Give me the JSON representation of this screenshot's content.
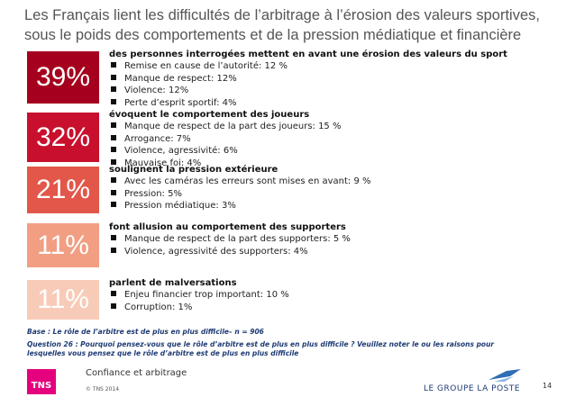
{
  "header": {
    "title_lines": [
      "Les Français lient les difficultés de l’arbitrage à l’érosion des valeurs sportives,",
      "sous le poids des comportements et de la pression médiatique et financière"
    ]
  },
  "blocks": [
    {
      "percent": "39%",
      "color": "#a5001e",
      "heading": "des personnes interrogées mettent en avant une érosion des valeurs du sport",
      "bullets": [
        "Remise en cause de l’autorité: 12 %",
        "Manque de respect: 12%",
        "Violence: 12%",
        "Perte d’esprit sportif: 4%"
      ]
    },
    {
      "percent": "32%",
      "color": "#c8102e",
      "heading": "évoquent le comportement des joueurs",
      "bullets": [
        "Manque de respect de la part des joueurs: 15 %",
        "Arrogance: 7%",
        "Violence, agressivité: 6%",
        "Mauvaise foi: 4%"
      ]
    },
    {
      "percent": "21%",
      "color": "#e2574a",
      "heading": "soulignent la pression extérieure",
      "bullets": [
        "Avec les caméras les erreurs sont mises en avant: 9 %",
        "Pression: 5%",
        "Pression médiatique: 3%"
      ]
    },
    {
      "percent": "11%",
      "color": "#f19e83",
      "heading": "font allusion au comportement des supporters",
      "bullets": [
        "Manque de respect de la part des supporters: 5 %",
        "Violence, agressivité des supporters: 4%"
      ]
    },
    {
      "percent": "11%",
      "color": "#f8cbb8",
      "heading": "parlent de malversations",
      "bullets": [
        "Enjeu financier trop important: 10 %",
        "Corruption: 1%"
      ]
    }
  ],
  "notes": {
    "base": "Base : Le rôle de l’arbitre est de plus en plus difficile– n = 906",
    "question": "Question 26 : Pourquoi pensez-vous que le rôle d’arbitre est de plus en plus difficile ? Veuillez noter le ou les raisons pour lesquelles vous pensez que le rôle d’arbitre est de plus en plus difficile"
  },
  "footer": {
    "logo": "TNS",
    "subject": "Confiance et arbitrage",
    "copyright": "© TNS 2014",
    "partner": "LE GROUPE LA POSTE",
    "page": "14"
  }
}
